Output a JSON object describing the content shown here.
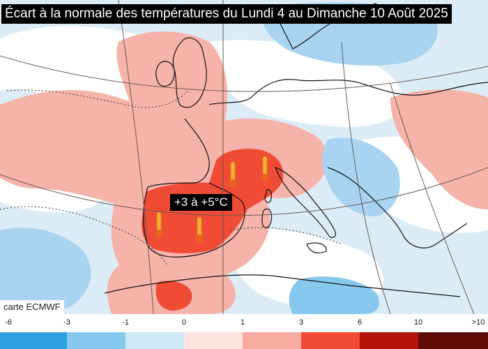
{
  "title": "Écart à la normale des températures du Lundi 4 au Dimanche 10 Août 2025",
  "credit": "carte ECMWF",
  "annotation": "+3 à +5°C",
  "legend": {
    "ticks": [
      "-6",
      "-3",
      "-1",
      "0",
      "1",
      "3",
      "6",
      "10",
      ">10"
    ],
    "bins": [
      {
        "range": "-6 to -3",
        "color": "#2f9fe4"
      },
      {
        "range": "-3 to -1",
        "color": "#86c8ee"
      },
      {
        "range": "-1 to 0",
        "color": "#cde9f8"
      },
      {
        "range": "0 to 1",
        "color": "#fde3df"
      },
      {
        "range": "1 to 3",
        "color": "#f6aaa0"
      },
      {
        "range": "3 to 6",
        "color": "#ef4b35"
      },
      {
        "range": "6 to 10",
        "color": "#b3140c"
      },
      {
        "range": ">10",
        "color": "#5f0b07"
      }
    ]
  },
  "colors": {
    "sea_cool": "#dcecf7",
    "anomaly_mild": "#f6b3aa",
    "anomaly_hot": "#ef4b35",
    "anomaly_cool": "#a8d4f1",
    "borders": "#111111",
    "graticule": "#6a5a52"
  },
  "icons": [
    "thermometer-icon"
  ]
}
